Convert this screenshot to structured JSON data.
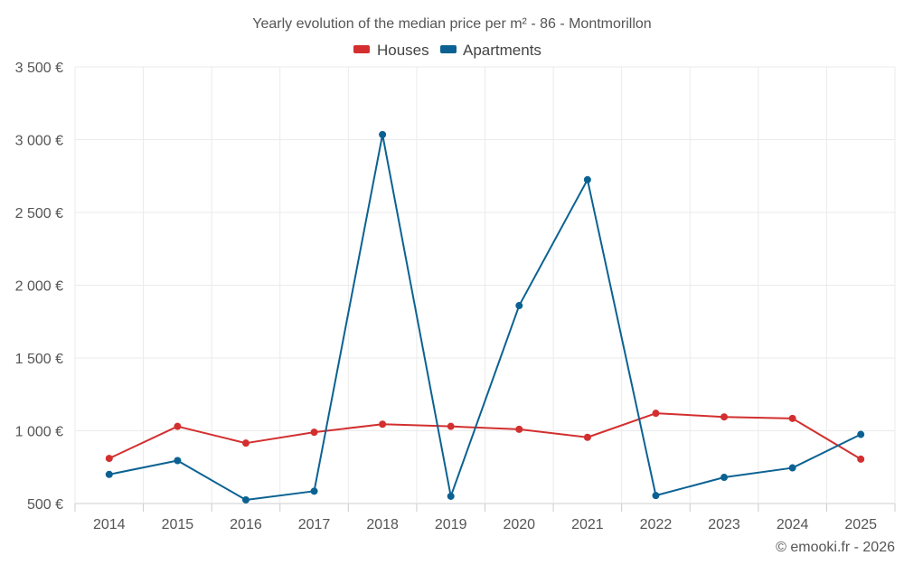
{
  "chart_data": {
    "type": "line",
    "title": "Yearly evolution of the median price per m² - 86 - Montmorillon",
    "xlabel": "",
    "ylabel": "",
    "categories": [
      "2014",
      "2015",
      "2016",
      "2017",
      "2018",
      "2019",
      "2020",
      "2021",
      "2022",
      "2023",
      "2024",
      "2025"
    ],
    "ylim": [
      500,
      3500
    ],
    "yticks": [
      500,
      1000,
      1500,
      2000,
      2500,
      3000,
      3500
    ],
    "ytick_labels": [
      "500 €",
      "1 000 €",
      "1 500 €",
      "2 000 €",
      "2 500 €",
      "3 000 €",
      "3 500 €"
    ],
    "grid": true,
    "legend_position": "top-center",
    "series": [
      {
        "name": "Houses",
        "color": "#d32f2f",
        "values": [
          810,
          1030,
          915,
          990,
          1045,
          1030,
          1010,
          955,
          1120,
          1095,
          1085,
          805
        ]
      },
      {
        "name": "Apartments",
        "color": "#0b6292",
        "values": [
          700,
          795,
          525,
          585,
          3035,
          550,
          1860,
          2725,
          555,
          680,
          745,
          975
        ]
      }
    ],
    "credit": "© emooki.fr - 2026"
  }
}
